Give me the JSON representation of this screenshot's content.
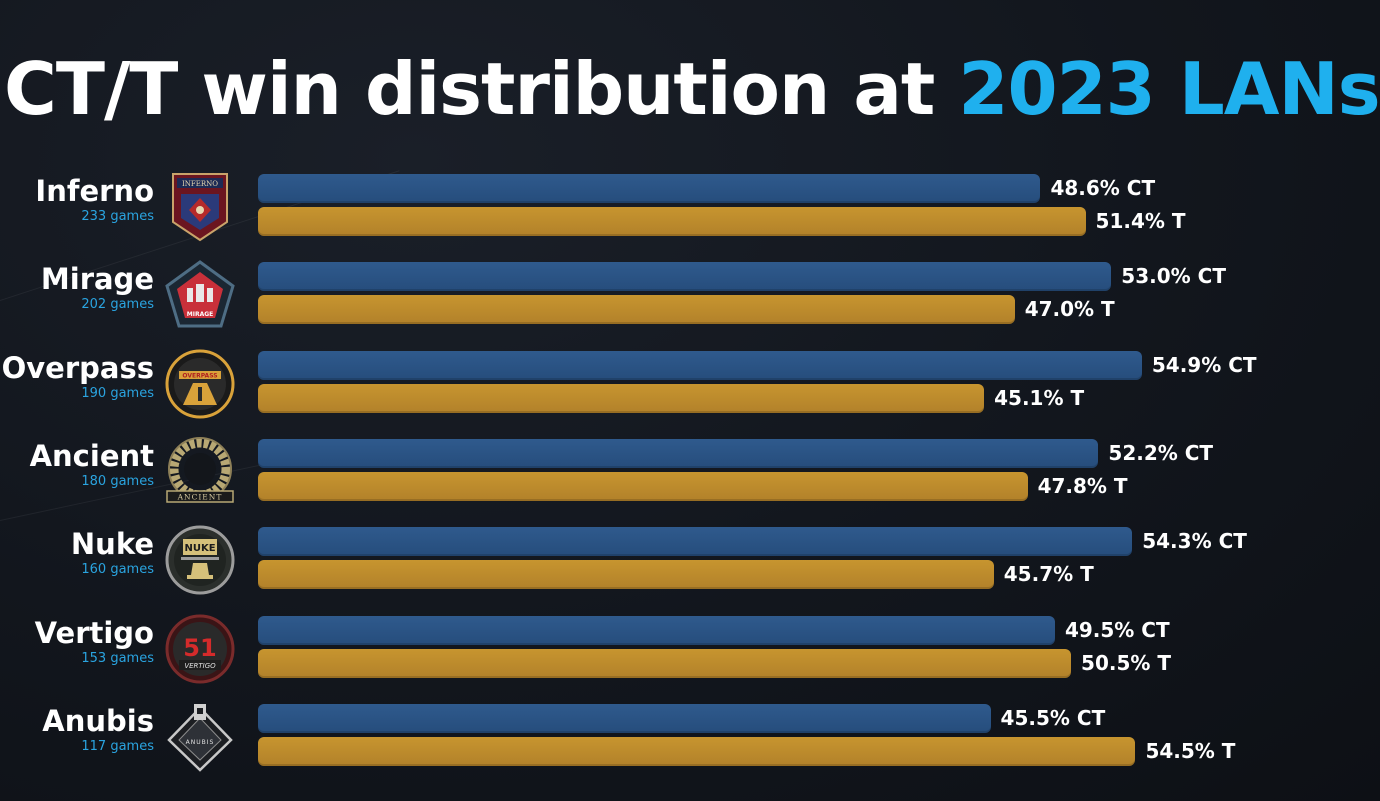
{
  "title": {
    "main": "CT/T win distribution at ",
    "highlight": "2023 LANs"
  },
  "colors": {
    "ct": "#2a5586",
    "t": "#bd8a2d",
    "highlight": "#1fb0ee",
    "games_text": "#2aa4e0"
  },
  "chart_data": {
    "type": "bar",
    "orientation": "horizontal",
    "categories": [
      "Inferno",
      "Mirage",
      "Overpass",
      "Ancient",
      "Nuke",
      "Vertigo",
      "Anubis"
    ],
    "games": [
      "233 games",
      "202 games",
      "190 games",
      "180 games",
      "160 games",
      "153 games",
      "117 games"
    ],
    "series": [
      {
        "name": "CT",
        "values": [
          48.6,
          53.0,
          54.9,
          52.2,
          54.3,
          49.5,
          45.5
        ],
        "labels": [
          "48.6% CT",
          "53.0% CT",
          "54.9% CT",
          "52.2% CT",
          "54.3% CT",
          "49.5% CT",
          "45.5% CT"
        ]
      },
      {
        "name": "T",
        "values": [
          51.4,
          47.0,
          45.1,
          47.8,
          45.7,
          50.5,
          54.5
        ],
        "labels": [
          "51.4% T",
          "47.0% T",
          "45.1% T",
          "47.8% T",
          "45.7% T",
          "50.5% T",
          "54.5% T"
        ]
      }
    ],
    "icons": [
      "inferno-emblem",
      "mirage-emblem",
      "overpass-emblem",
      "ancient-emblem",
      "nuke-emblem",
      "vertigo-emblem",
      "anubis-emblem"
    ],
    "emblem_text": [
      "INFERNO",
      "MIRAGE",
      "OVERPASS",
      "ANCIENT",
      "NUKE",
      "VERTIGO",
      "ANUBIS"
    ],
    "xlabel": "",
    "ylabel": "",
    "grid": false,
    "legend": "none"
  }
}
